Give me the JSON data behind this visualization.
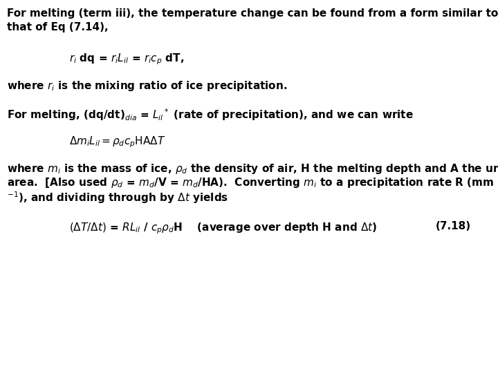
{
  "background_color": "#ffffff",
  "figsize": [
    7.2,
    5.4
  ],
  "dpi": 100,
  "font_size": 11.0,
  "bold": true
}
